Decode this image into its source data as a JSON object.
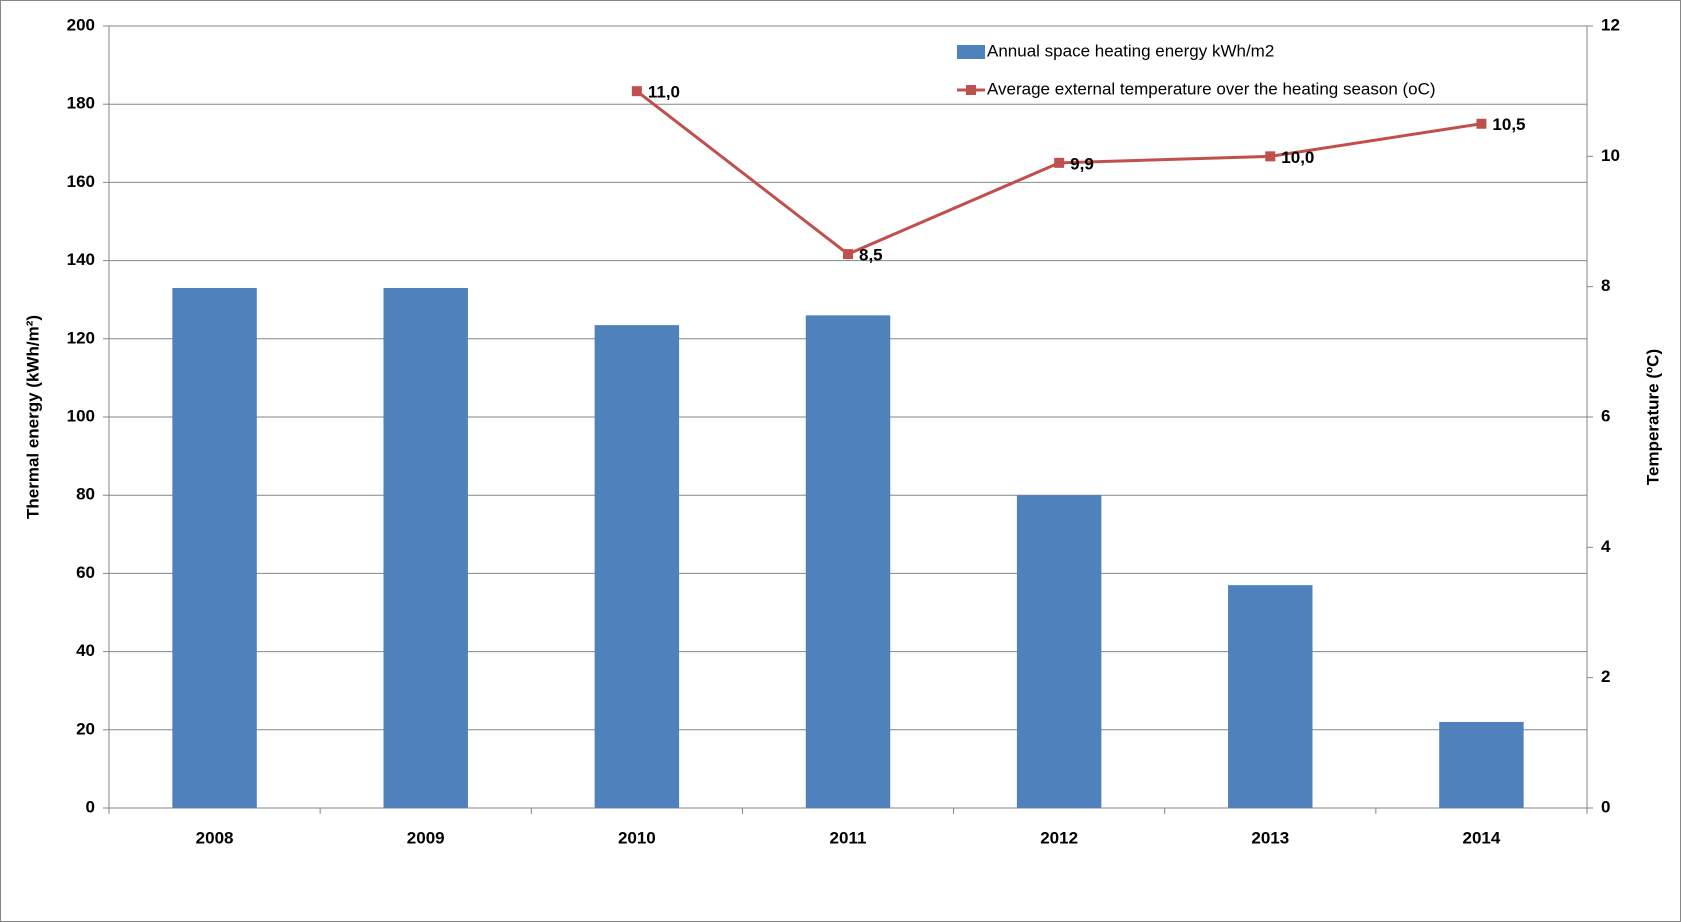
{
  "chart_data": {
    "type": "bar-line",
    "categories": [
      "2008",
      "2009",
      "2010",
      "2011",
      "2012",
      "2013",
      "2014"
    ],
    "series": [
      {
        "name": "Annual space heating energy kWh/m2",
        "type": "bar",
        "color": "#4f81bd",
        "values": [
          133,
          133,
          123.5,
          126,
          80,
          57,
          22
        ]
      },
      {
        "name": "Average external temperature over the heating season (oC)",
        "type": "line",
        "axis": "y2",
        "color": "#c0504d",
        "values": [
          null,
          null,
          11.0,
          8.5,
          9.9,
          10.0,
          10.5
        ],
        "value_labels": [
          null,
          null,
          "11,0",
          "8,5",
          "9,9",
          "10,0",
          "10,5"
        ]
      }
    ],
    "ylabel": "Thermal energy (kWh/m²)",
    "y2label": "Temperature (ºC)",
    "ylim": [
      0,
      200
    ],
    "yticks": [
      0,
      20,
      40,
      60,
      80,
      100,
      120,
      140,
      160,
      180,
      200
    ],
    "y2lim": [
      0,
      12
    ],
    "y2ticks": [
      0,
      2,
      4,
      6,
      8,
      10,
      12
    ],
    "grid": true,
    "legend": "top-right"
  }
}
